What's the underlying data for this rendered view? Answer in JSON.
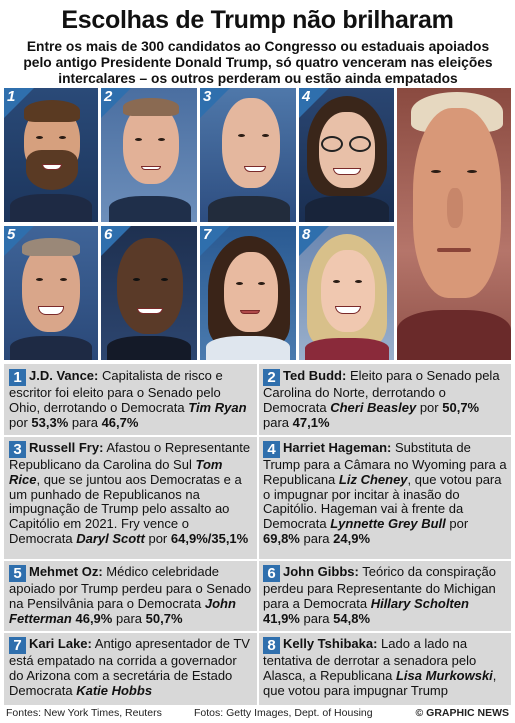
{
  "title": "Escolhas de Trump não brilharam",
  "subtitle": "Entre os mais de 300 candidatos ao Congresso ou estaduais apoiados pelo antigo Presidente Donald Trump, só quatro venceram nas eleições intercalares – os outros perderam ou estão ainda empatados",
  "photos": [
    "1",
    "2",
    "3",
    "4",
    "5",
    "6",
    "7",
    "8"
  ],
  "cells": [
    {
      "num": "1",
      "name": "J.D. Vance:",
      "text": "Capitalista de risco e escritor foi eleito para o Senado pelo Ohio, derrotando o Democrata",
      "opp": "Tim Ryan",
      "r1": "por",
      "p1": "53,3%",
      "r2": "para",
      "p2": "46,7%"
    },
    {
      "num": "2",
      "name": "Ted Budd:",
      "text": "Eleito para o Senado pela Carolina do Norte, derrotando o Democrata",
      "opp": "Cheri Beasley",
      "r1": "por",
      "p1": "50,7%",
      "r2": "para",
      "p2": "47,1%"
    },
    {
      "num": "3",
      "name": "Russell Fry:",
      "text1": "Afastou o Representante Republicano da Carolina do Sul",
      "opp1": "Tom Rice",
      "text2": ", que se juntou aos Democratas e a um punhado de Republicanos na impugnação de Trump pelo assalto ao Capitólio em 2021. Fry vence o Democrata",
      "opp2": "Daryl Scott",
      "r1": "por",
      "p1": "64,9%/35,1%"
    },
    {
      "num": "4",
      "name": "Harriet Hageman:",
      "text1": "Substituta de Trump para a Câmara no Wyoming para a Republicana",
      "opp1": "Liz Cheney",
      "text2": ", que votou para o impugnar por incitar à inasão do Capitólio. Hageman vai à frente da Democrata",
      "opp2": "Lynnette Grey Bull",
      "r1": "por",
      "p1": "69,8%",
      "r2": "para",
      "p2": "24,9%"
    },
    {
      "num": "5",
      "name": "Mehmet Oz:",
      "text": "Médico celebridade apoiado por Trump perdeu para o Senado na Pensilvânia para o Democrata",
      "opp": "John Fetterman",
      "p1": "46,9%",
      "r2": "para",
      "p2": "50,7%"
    },
    {
      "num": "6",
      "name": "John Gibbs:",
      "text": "Teórico da conspiração perdeu para Representante do Michigan para a Democrata",
      "opp": "Hillary Scholten",
      "p1": "41,9%",
      "r2": "para",
      "p2": "54,8%"
    },
    {
      "num": "7",
      "name": "Kari Lake:",
      "text": "Antigo apresentador de TV está empatado na corrida a governador do Arizona com a secretária de Estado Democrata",
      "opp": "Katie Hobbs"
    },
    {
      "num": "8",
      "name": "Kelly Tshibaka:",
      "text1": "Lado a lado na tentativa de derrotar a senadora pelo Alasca, a Republicana",
      "opp1": "Lisa Murkowski",
      "text2": ", que votou para impugnar Trump"
    }
  ],
  "footer": {
    "sources": "Fontes: New York Times, Reuters",
    "photos": "Fotos: Getty Images, Dept. of Housing",
    "credit": "© GRAPHIC NEWS"
  }
}
